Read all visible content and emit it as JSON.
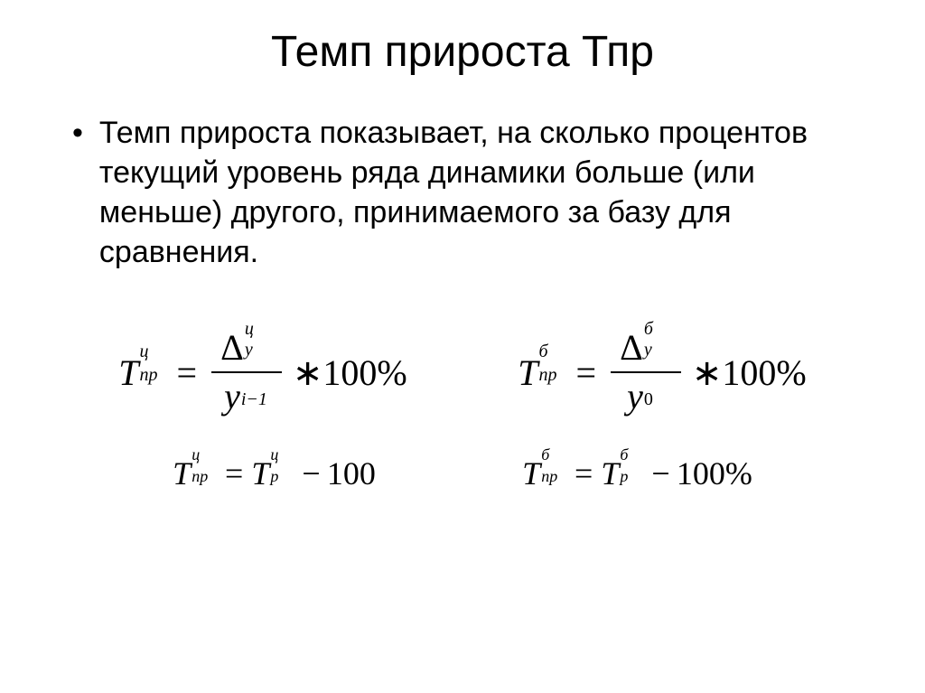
{
  "title": "Темп прироста Тпр",
  "bullet": "Темп прироста показывает, на сколько процентов текущий уровень ряда динамики больше (или меньше) другого, принимаемого за базу для сравнения.",
  "sym": {
    "T": "Т",
    "np": "пр",
    "p": "р",
    "ts": "ц",
    "b": "б",
    "Delta": "Δ",
    "y": "у",
    "y_lat": "y",
    "i_minus_1": "i−1",
    "zero": "0",
    "eq": "=",
    "star100pct": "∗100%",
    "minus": "−",
    "hundred": "100",
    "hundredpct": "100%"
  }
}
